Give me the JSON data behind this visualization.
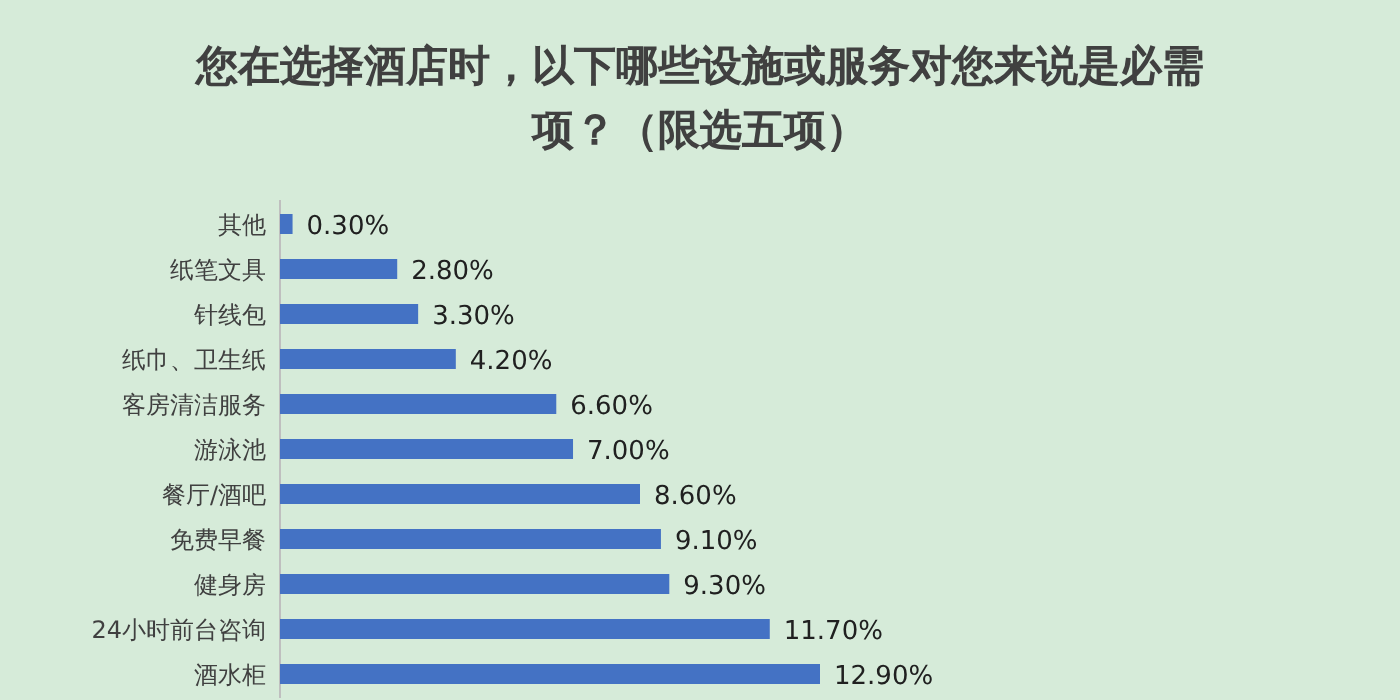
{
  "chart_data": {
    "type": "bar",
    "orientation": "horizontal",
    "title": "您在选择酒店时，以下哪些设施或服务对您来说是必需项？（限选五项）",
    "categories": [
      "其他",
      "纸笔文具",
      "针线包",
      "纸巾、卫生纸",
      "客房清洁服务",
      "游泳池",
      "餐厅/酒吧",
      "免费早餐",
      "健身房",
      "24小时前台咨询",
      "酒水柜"
    ],
    "values": [
      0.3,
      2.8,
      3.3,
      4.2,
      6.6,
      7.0,
      8.6,
      9.1,
      9.3,
      11.7,
      12.9
    ],
    "value_labels": [
      "0.30%",
      "2.80%",
      "3.30%",
      "4.20%",
      "6.60%",
      "7.00%",
      "8.60%",
      "9.10%",
      "9.30%",
      "11.70%",
      "12.90%"
    ],
    "color": "#4472c4"
  }
}
